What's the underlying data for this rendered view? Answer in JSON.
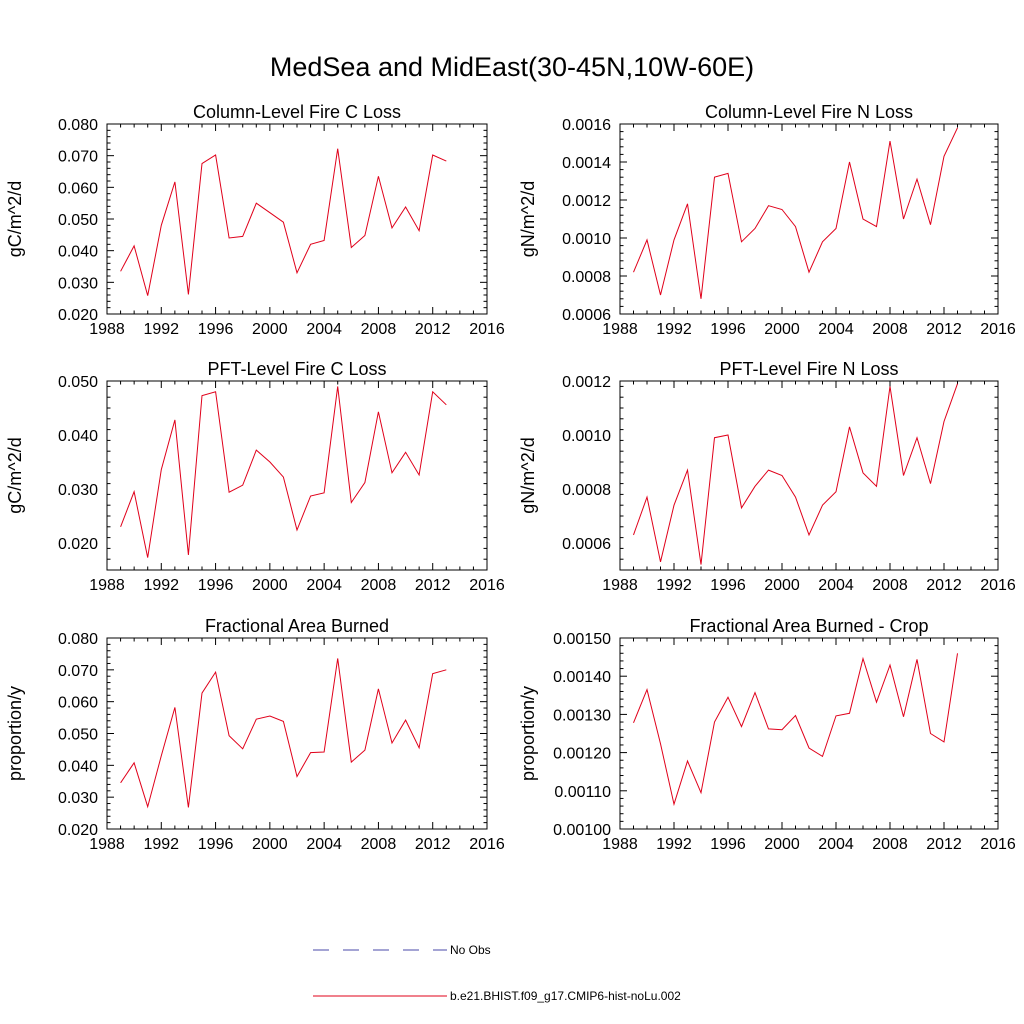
{
  "title": "MedSea and MidEast(30-45N,10W-60E)",
  "legend": {
    "entries": [
      {
        "label": "No Obs",
        "style": "dashed",
        "color": "#4a4aa8"
      },
      {
        "label": "b.e21.BHIST.f09_g17.CMIP6-hist-noLu.002",
        "style": "solid",
        "color": "#e0001a"
      }
    ]
  },
  "chart_data": [
    {
      "type": "line",
      "title": "Column-Level Fire C Loss",
      "ylabel": "gC/m^2/d",
      "xlim": [
        1988,
        2016
      ],
      "ylim": [
        0.02,
        0.08
      ],
      "xticks": [
        "1988",
        "1992",
        "1996",
        "2000",
        "2004",
        "2008",
        "2012",
        "2016"
      ],
      "yticks": [
        "0.020",
        "0.030",
        "0.040",
        "0.050",
        "0.060",
        "0.070",
        "0.080"
      ],
      "x": [
        1989,
        1990,
        1991,
        1992,
        1993,
        1994,
        1995,
        1996,
        1997,
        1998,
        1999,
        2000,
        2001,
        2002,
        2003,
        2004,
        2005,
        2006,
        2007,
        2008,
        2009,
        2010,
        2011,
        2012,
        2013
      ],
      "series": [
        {
          "name": "b.e21.BHIST.f09_g17.CMIP6-hist-noLu.002",
          "color": "#e0001a",
          "values": [
            0.0335,
            0.0415,
            0.0258,
            0.048,
            0.0617,
            0.0262,
            0.0675,
            0.0702,
            0.044,
            0.0445,
            0.055,
            0.052,
            0.049,
            0.033,
            0.042,
            0.0432,
            0.0722,
            0.041,
            0.0448,
            0.0635,
            0.0472,
            0.0538,
            0.0463,
            0.0702,
            0.0683
          ]
        }
      ]
    },
    {
      "type": "line",
      "title": "Column-Level Fire N Loss",
      "ylabel": "gN/m^2/d",
      "xlim": [
        1988,
        2016
      ],
      "ylim": [
        0.0006,
        0.0016
      ],
      "xticks": [
        "1988",
        "1992",
        "1996",
        "2000",
        "2004",
        "2008",
        "2012",
        "2016"
      ],
      "yticks": [
        "0.0006",
        "0.0008",
        "0.0010",
        "0.0012",
        "0.0014",
        "0.0016"
      ],
      "x": [
        1989,
        1990,
        1991,
        1992,
        1993,
        1994,
        1995,
        1996,
        1997,
        1998,
        1999,
        2000,
        2001,
        2002,
        2003,
        2004,
        2005,
        2006,
        2007,
        2008,
        2009,
        2010,
        2011,
        2012,
        2013
      ],
      "series": [
        {
          "name": "b.e21.BHIST.f09_g17.CMIP6-hist-noLu.002",
          "color": "#e0001a",
          "values": [
            0.00082,
            0.00099,
            0.0007,
            0.00099,
            0.00118,
            0.00068,
            0.00132,
            0.00134,
            0.00098,
            0.00105,
            0.00117,
            0.00115,
            0.00106,
            0.00082,
            0.00098,
            0.00105,
            0.0014,
            0.0011,
            0.00106,
            0.00151,
            0.0011,
            0.00131,
            0.00107,
            0.00143,
            0.00158
          ]
        }
      ]
    },
    {
      "type": "line",
      "title": "PFT-Level Fire C Loss",
      "ylabel": "gC/m^2/d",
      "xlim": [
        1988,
        2016
      ],
      "ylim": [
        0.015,
        0.05
      ],
      "xticks": [
        "1988",
        "1992",
        "1996",
        "2000",
        "2004",
        "2008",
        "2012",
        "2016"
      ],
      "yticks": [
        "0.020",
        "0.030",
        "0.040",
        "0.050"
      ],
      "x": [
        1989,
        1990,
        1991,
        1992,
        1993,
        1994,
        1995,
        1996,
        1997,
        1998,
        1999,
        2000,
        2001,
        2002,
        2003,
        2004,
        2005,
        2006,
        2007,
        2008,
        2009,
        2010,
        2011,
        2012,
        2013
      ],
      "series": [
        {
          "name": "b.e21.BHIST.f09_g17.CMIP6-hist-noLu.002",
          "color": "#e0001a",
          "values": [
            0.023,
            0.0295,
            0.0173,
            0.0336,
            0.0428,
            0.0178,
            0.0473,
            0.048,
            0.0294,
            0.0307,
            0.0372,
            0.035,
            0.0322,
            0.0224,
            0.0287,
            0.0293,
            0.049,
            0.0275,
            0.0312,
            0.0443,
            0.033,
            0.0368,
            0.0326,
            0.048,
            0.0456
          ]
        }
      ]
    },
    {
      "type": "line",
      "title": "PFT-Level Fire N Loss",
      "ylabel": "gN/m^2/d",
      "xlim": [
        1988,
        2016
      ],
      "ylim": [
        0.0005,
        0.0012
      ],
      "xticks": [
        "1988",
        "1992",
        "1996",
        "2000",
        "2004",
        "2008",
        "2012",
        "2016"
      ],
      "yticks": [
        "0.0006",
        "0.0008",
        "0.0010",
        "0.0012"
      ],
      "x": [
        1989,
        1990,
        1991,
        1992,
        1993,
        1994,
        1995,
        1996,
        1997,
        1998,
        1999,
        2000,
        2001,
        2002,
        2003,
        2004,
        2005,
        2006,
        2007,
        2008,
        2009,
        2010,
        2011,
        2012,
        2013
      ],
      "series": [
        {
          "name": "b.e21.BHIST.f09_g17.CMIP6-hist-noLu.002",
          "color": "#e0001a",
          "values": [
            0.00063,
            0.00077,
            0.00053,
            0.00074,
            0.00087,
            0.00052,
            0.00099,
            0.001,
            0.00073,
            0.00081,
            0.00087,
            0.00085,
            0.00077,
            0.00063,
            0.00074,
            0.00079,
            0.00103,
            0.00086,
            0.00081,
            0.00118,
            0.00085,
            0.00099,
            0.00082,
            0.00105,
            0.00119
          ]
        }
      ]
    },
    {
      "type": "line",
      "title": "Fractional Area Burned",
      "ylabel": "proportion/y",
      "xlim": [
        1988,
        2016
      ],
      "ylim": [
        0.02,
        0.08
      ],
      "xticks": [
        "1988",
        "1992",
        "1996",
        "2000",
        "2004",
        "2008",
        "2012",
        "2016"
      ],
      "yticks": [
        "0.020",
        "0.030",
        "0.040",
        "0.050",
        "0.060",
        "0.070",
        "0.080"
      ],
      "x": [
        1989,
        1990,
        1991,
        1992,
        1993,
        1994,
        1995,
        1996,
        1997,
        1998,
        1999,
        2000,
        2001,
        2002,
        2003,
        2004,
        2005,
        2006,
        2007,
        2008,
        2009,
        2010,
        2011,
        2012,
        2013
      ],
      "series": [
        {
          "name": "b.e21.BHIST.f09_g17.CMIP6-hist-noLu.002",
          "color": "#e0001a",
          "values": [
            0.0345,
            0.0408,
            0.027,
            0.043,
            0.0582,
            0.0268,
            0.0627,
            0.0693,
            0.0493,
            0.0452,
            0.0545,
            0.0555,
            0.0538,
            0.0365,
            0.044,
            0.0442,
            0.0736,
            0.041,
            0.0448,
            0.064,
            0.047,
            0.0542,
            0.0455,
            0.0688,
            0.07
          ]
        }
      ]
    },
    {
      "type": "line",
      "title": "Fractional Area Burned - Crop",
      "ylabel": "proportion/y",
      "xlim": [
        1988,
        2016
      ],
      "ylim": [
        0.001,
        0.0015
      ],
      "xticks": [
        "1988",
        "1992",
        "1996",
        "2000",
        "2004",
        "2008",
        "2012",
        "2016"
      ],
      "yticks": [
        "0.00100",
        "0.00110",
        "0.00120",
        "0.00130",
        "0.00140",
        "0.00150"
      ],
      "x": [
        1989,
        1990,
        1991,
        1992,
        1993,
        1994,
        1995,
        1996,
        1997,
        1998,
        1999,
        2000,
        2001,
        2002,
        2003,
        2004,
        2005,
        2006,
        2007,
        2008,
        2009,
        2010,
        2011,
        2012,
        2013
      ],
      "series": [
        {
          "name": "b.e21.BHIST.f09_g17.CMIP6-hist-noLu.002",
          "color": "#e0001a",
          "values": [
            0.001278,
            0.001365,
            0.001223,
            0.001065,
            0.001178,
            0.001095,
            0.00128,
            0.001345,
            0.001268,
            0.001357,
            0.001262,
            0.00126,
            0.001297,
            0.001212,
            0.00119,
            0.001296,
            0.001303,
            0.001446,
            0.001332,
            0.001429,
            0.001294,
            0.001444,
            0.00125,
            0.001228,
            0.00146
          ]
        }
      ]
    }
  ]
}
